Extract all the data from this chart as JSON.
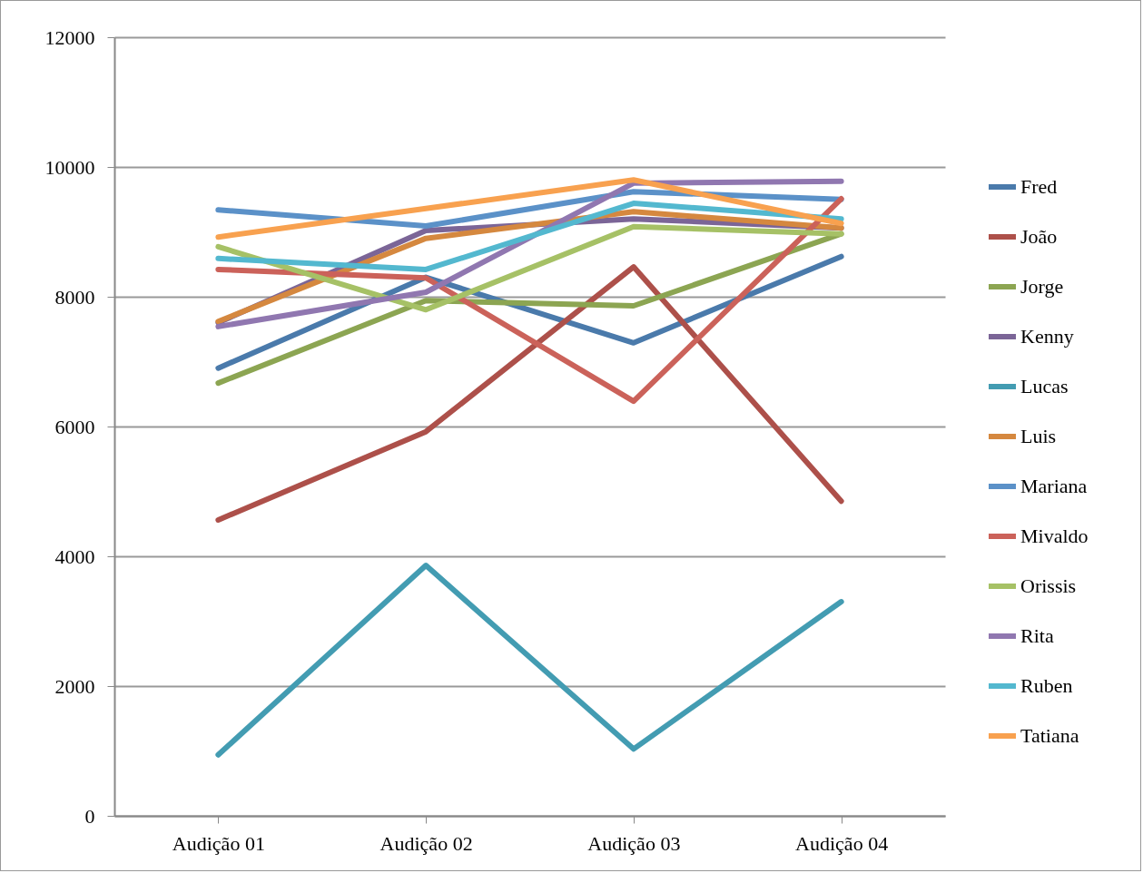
{
  "chart_data": {
    "type": "line",
    "categories": [
      "Audição 01",
      "Audição 02",
      "Audição 03",
      "Audição 04"
    ],
    "ylim": [
      0,
      12000
    ],
    "yticks": [
      0,
      2000,
      4000,
      6000,
      8000,
      10000,
      12000
    ],
    "grid": "y",
    "legend": "right",
    "marker": "none",
    "line_style": "solid",
    "series": [
      {
        "name": "Fred",
        "color": "#4a7aab",
        "values": [
          6900,
          8300,
          7290,
          8620
        ]
      },
      {
        "name": "João",
        "color": "#ad504a",
        "values": [
          4560,
          5920,
          8460,
          4850
        ]
      },
      {
        "name": "Jorge",
        "color": "#8ca552",
        "values": [
          6670,
          7940,
          7860,
          8970
        ]
      },
      {
        "name": "Kenny",
        "color": "#7b6597",
        "values": [
          7600,
          9020,
          9200,
          9060
        ]
      },
      {
        "name": "Lucas",
        "color": "#439cb2",
        "values": [
          940,
          3860,
          1030,
          3300
        ]
      },
      {
        "name": "Luis",
        "color": "#d5883f",
        "values": [
          7620,
          8900,
          9310,
          9060
        ]
      },
      {
        "name": "Mariana",
        "color": "#5b91c8",
        "values": [
          9340,
          9090,
          9620,
          9500
        ]
      },
      {
        "name": "Mivaldo",
        "color": "#cb625a",
        "values": [
          8420,
          8290,
          6390,
          9510
        ]
      },
      {
        "name": "Orissis",
        "color": "#a6c166",
        "values": [
          8770,
          7800,
          9080,
          8970
        ]
      },
      {
        "name": "Rita",
        "color": "#9077b0",
        "values": [
          7540,
          8070,
          9750,
          9780
        ]
      },
      {
        "name": "Ruben",
        "color": "#53b8cf",
        "values": [
          8590,
          8420,
          9440,
          9200
        ]
      },
      {
        "name": "Tatiana",
        "color": "#f8a14f",
        "values": [
          8920,
          9360,
          9800,
          9130
        ]
      }
    ]
  }
}
